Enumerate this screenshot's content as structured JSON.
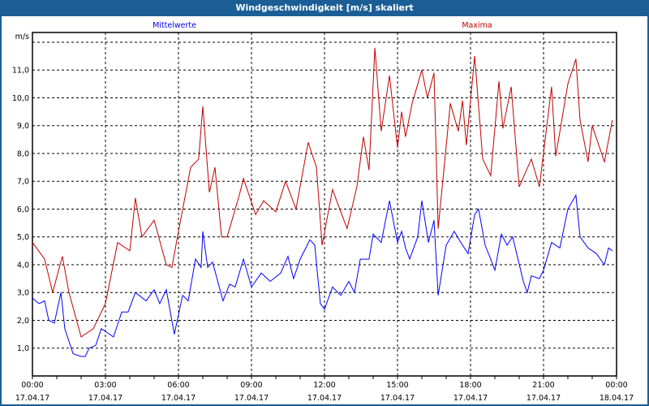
{
  "window": {
    "title": "Windgeschwindigkeit [m/s] skaliert"
  },
  "chart_data": {
    "type": "line",
    "title": "Windgeschwindigkeit [m/s] skaliert",
    "ylabel": "m/s",
    "xlabel": "",
    "ylim": [
      0,
      12.35
    ],
    "xlim": [
      0,
      24
    ],
    "yticks": [
      {
        "v": 1,
        "label": "1,0"
      },
      {
        "v": 2,
        "label": "2,0"
      },
      {
        "v": 3,
        "label": "3,0"
      },
      {
        "v": 4,
        "label": "4,0"
      },
      {
        "v": 5,
        "label": "5,0"
      },
      {
        "v": 6,
        "label": "6,0"
      },
      {
        "v": 7,
        "label": "7,0"
      },
      {
        "v": 8,
        "label": "8,0"
      },
      {
        "v": 9,
        "label": "9,0"
      },
      {
        "v": 10,
        "label": "10,0"
      },
      {
        "v": 11,
        "label": "11,0"
      },
      {
        "v": 12,
        "label": ""
      }
    ],
    "xticks": [
      {
        "h": 0,
        "time": "00:00",
        "date": "17.04.17"
      },
      {
        "h": 3,
        "time": "03:00",
        "date": "17.04.17"
      },
      {
        "h": 6,
        "time": "06:00",
        "date": "17.04.17"
      },
      {
        "h": 9,
        "time": "09:00",
        "date": "17.04.17"
      },
      {
        "h": 12,
        "time": "12:00",
        "date": "17.04.17"
      },
      {
        "h": 15,
        "time": "15:00",
        "date": "17.04.17"
      },
      {
        "h": 18,
        "time": "18:00",
        "date": "17.04.17"
      },
      {
        "h": 21,
        "time": "21:00",
        "date": "17.04.17"
      },
      {
        "h": 24,
        "time": "00:00",
        "date": "18.04.17"
      }
    ],
    "grid": true,
    "series": [
      {
        "name": "Mittelwerte",
        "color": "#0000ff",
        "legend": "top-left",
        "points": [
          [
            0,
            2.8
          ],
          [
            0.27,
            2.6
          ],
          [
            0.5,
            2.7
          ],
          [
            0.67,
            2.0
          ],
          [
            0.9,
            1.9
          ],
          [
            1.17,
            3.0
          ],
          [
            1.33,
            1.7
          ],
          [
            1.67,
            0.8
          ],
          [
            2.0,
            0.7
          ],
          [
            2.17,
            0.7
          ],
          [
            2.33,
            1.0
          ],
          [
            2.6,
            1.1
          ],
          [
            2.83,
            1.7
          ],
          [
            3.17,
            1.5
          ],
          [
            3.33,
            1.4
          ],
          [
            3.67,
            2.3
          ],
          [
            3.93,
            2.3
          ],
          [
            4.23,
            3.0
          ],
          [
            4.67,
            2.7
          ],
          [
            5.0,
            3.1
          ],
          [
            5.23,
            2.6
          ],
          [
            5.5,
            3.1
          ],
          [
            5.83,
            1.5
          ],
          [
            6.17,
            2.9
          ],
          [
            6.4,
            2.7
          ],
          [
            6.7,
            4.2
          ],
          [
            6.93,
            3.9
          ],
          [
            7.0,
            5.2
          ],
          [
            7.2,
            3.9
          ],
          [
            7.4,
            4.1
          ],
          [
            7.83,
            2.7
          ],
          [
            8.1,
            3.3
          ],
          [
            8.33,
            3.2
          ],
          [
            8.67,
            4.2
          ],
          [
            9.0,
            3.2
          ],
          [
            9.4,
            3.7
          ],
          [
            9.77,
            3.4
          ],
          [
            10.2,
            3.7
          ],
          [
            10.5,
            4.3
          ],
          [
            10.73,
            3.5
          ],
          [
            11.0,
            4.2
          ],
          [
            11.4,
            4.9
          ],
          [
            11.6,
            4.7
          ],
          [
            11.83,
            2.6
          ],
          [
            12.0,
            2.4
          ],
          [
            12.33,
            3.2
          ],
          [
            12.67,
            2.9
          ],
          [
            13.0,
            3.4
          ],
          [
            13.23,
            3.0
          ],
          [
            13.47,
            4.2
          ],
          [
            13.83,
            4.2
          ],
          [
            14.0,
            5.1
          ],
          [
            14.33,
            4.8
          ],
          [
            14.67,
            6.3
          ],
          [
            15.0,
            4.8
          ],
          [
            15.17,
            5.2
          ],
          [
            15.33,
            4.6
          ],
          [
            15.5,
            4.2
          ],
          [
            15.83,
            5.0
          ],
          [
            16.0,
            6.3
          ],
          [
            16.27,
            4.8
          ],
          [
            16.5,
            5.6
          ],
          [
            16.67,
            2.9
          ],
          [
            17.0,
            4.7
          ],
          [
            17.33,
            5.2
          ],
          [
            17.6,
            4.8
          ],
          [
            17.9,
            4.4
          ],
          [
            18.17,
            5.8
          ],
          [
            18.33,
            6.0
          ],
          [
            18.6,
            4.7
          ],
          [
            18.83,
            4.2
          ],
          [
            19.0,
            3.8
          ],
          [
            19.27,
            5.1
          ],
          [
            19.5,
            4.7
          ],
          [
            19.73,
            5.0
          ],
          [
            20.17,
            3.4
          ],
          [
            20.33,
            3.0
          ],
          [
            20.5,
            3.6
          ],
          [
            20.83,
            3.5
          ],
          [
            21.0,
            3.8
          ],
          [
            21.33,
            4.8
          ],
          [
            21.67,
            4.6
          ],
          [
            22.0,
            6.0
          ],
          [
            22.33,
            6.5
          ],
          [
            22.5,
            5.0
          ],
          [
            22.83,
            4.6
          ],
          [
            23.17,
            4.4
          ],
          [
            23.5,
            4.0
          ],
          [
            23.67,
            4.6
          ],
          [
            23.83,
            4.5
          ]
        ]
      },
      {
        "name": "Maxima",
        "color": "#c00000",
        "legend": "top-right",
        "points": [
          [
            0,
            4.8
          ],
          [
            0.5,
            4.2
          ],
          [
            0.83,
            3.0
          ],
          [
            1.23,
            4.3
          ],
          [
            1.5,
            3.0
          ],
          [
            2.0,
            1.4
          ],
          [
            2.5,
            1.7
          ],
          [
            3.0,
            2.6
          ],
          [
            3.5,
            4.8
          ],
          [
            4.0,
            4.5
          ],
          [
            4.23,
            6.4
          ],
          [
            4.5,
            5.0
          ],
          [
            5.0,
            5.6
          ],
          [
            5.5,
            4.0
          ],
          [
            5.73,
            3.9
          ],
          [
            6.0,
            5.2
          ],
          [
            6.5,
            7.5
          ],
          [
            6.83,
            7.8
          ],
          [
            7.0,
            9.7
          ],
          [
            7.27,
            6.6
          ],
          [
            7.5,
            7.5
          ],
          [
            7.77,
            5.0
          ],
          [
            8.0,
            5.0
          ],
          [
            8.5,
            6.5
          ],
          [
            8.67,
            7.1
          ],
          [
            9.17,
            5.8
          ],
          [
            9.5,
            6.3
          ],
          [
            10.0,
            5.9
          ],
          [
            10.4,
            7.0
          ],
          [
            10.83,
            6.0
          ],
          [
            11.33,
            8.4
          ],
          [
            11.67,
            7.5
          ],
          [
            11.9,
            4.7
          ],
          [
            12.33,
            6.7
          ],
          [
            12.67,
            5.9
          ],
          [
            12.93,
            5.3
          ],
          [
            13.33,
            6.8
          ],
          [
            13.6,
            8.6
          ],
          [
            13.83,
            7.4
          ],
          [
            14.07,
            11.8
          ],
          [
            14.33,
            8.8
          ],
          [
            14.67,
            10.8
          ],
          [
            15.0,
            8.2
          ],
          [
            15.17,
            9.5
          ],
          [
            15.33,
            8.6
          ],
          [
            15.6,
            9.8
          ],
          [
            16.0,
            11.0
          ],
          [
            16.23,
            10.0
          ],
          [
            16.5,
            10.9
          ],
          [
            16.67,
            5.3
          ],
          [
            17.17,
            9.8
          ],
          [
            17.5,
            8.8
          ],
          [
            17.67,
            9.9
          ],
          [
            17.83,
            8.3
          ],
          [
            18.17,
            11.5
          ],
          [
            18.5,
            7.8
          ],
          [
            18.83,
            7.2
          ],
          [
            19.17,
            10.6
          ],
          [
            19.33,
            8.9
          ],
          [
            19.67,
            10.4
          ],
          [
            20.0,
            6.8
          ],
          [
            20.5,
            7.8
          ],
          [
            20.83,
            6.8
          ],
          [
            21.33,
            10.4
          ],
          [
            21.5,
            7.9
          ],
          [
            22.0,
            10.5
          ],
          [
            22.33,
            11.4
          ],
          [
            22.5,
            9.2
          ],
          [
            22.83,
            7.7
          ],
          [
            23.0,
            9.0
          ],
          [
            23.5,
            7.7
          ],
          [
            23.83,
            9.2
          ]
        ]
      }
    ]
  }
}
